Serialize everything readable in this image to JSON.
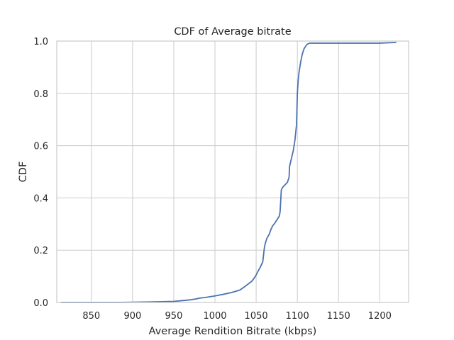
{
  "chart_data": {
    "type": "line",
    "title": "CDF of Average bitrate",
    "xlabel": "Average Rendition Bitrate (kbps)",
    "ylabel": "CDF",
    "xlim": [
      808,
      1235
    ],
    "ylim": [
      0,
      1
    ],
    "x_ticks": [
      850,
      900,
      950,
      1000,
      1050,
      1100,
      1150,
      1200
    ],
    "x_tick_labels": [
      "850",
      "900",
      "950",
      "1000",
      "1050",
      "1100",
      "1150",
      "1200"
    ],
    "y_ticks": [
      0,
      0.2,
      0.4,
      0.6,
      0.8,
      1.0
    ],
    "y_tick_labels": [
      "0.0",
      "0.2",
      "0.4",
      "0.6",
      "0.8",
      "1.0"
    ],
    "grid": true,
    "line_color": "#4c72b0",
    "grid_color": "#cccccc",
    "series": [
      {
        "x": [
          813,
          880,
          920,
          950,
          960,
          970,
          978,
          980,
          990,
          1000,
          1010,
          1020,
          1030,
          1035,
          1040,
          1045,
          1048,
          1050,
          1052,
          1055,
          1058,
          1060,
          1061,
          1063,
          1066,
          1068,
          1070,
          1073,
          1075,
          1078,
          1079,
          1080,
          1080.5,
          1082,
          1085,
          1088,
          1090,
          1090.5,
          1092,
          1095,
          1097,
          1098,
          1099,
          1100,
          1101,
          1102,
          1104,
          1106,
          1108,
          1110,
          1112,
          1115,
          1120,
          1150,
          1200,
          1220
        ],
        "y": [
          0.0,
          0.0,
          0.002,
          0.004,
          0.007,
          0.01,
          0.014,
          0.016,
          0.02,
          0.025,
          0.031,
          0.038,
          0.047,
          0.058,
          0.07,
          0.082,
          0.095,
          0.105,
          0.118,
          0.135,
          0.155,
          0.21,
          0.225,
          0.245,
          0.262,
          0.28,
          0.293,
          0.305,
          0.315,
          0.33,
          0.345,
          0.4,
          0.43,
          0.44,
          0.45,
          0.46,
          0.48,
          0.52,
          0.54,
          0.58,
          0.62,
          0.65,
          0.68,
          0.8,
          0.85,
          0.88,
          0.92,
          0.95,
          0.97,
          0.98,
          0.988,
          0.992,
          0.992,
          0.992,
          0.992,
          0.995
        ]
      }
    ]
  }
}
